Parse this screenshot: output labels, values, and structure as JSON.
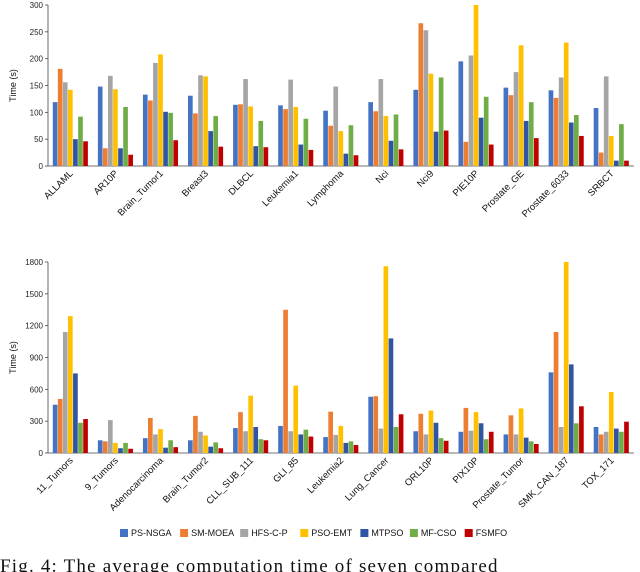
{
  "chart_data": [
    {
      "type": "bar",
      "ylabel": "Time (s)",
      "ylim": [
        0,
        300
      ],
      "yticks": [
        0,
        50,
        100,
        150,
        200,
        250,
        300
      ],
      "grid": false,
      "categories": [
        "ALLAML",
        "AR10P",
        "Brain_Tumor1",
        "Breast3",
        "DLBCL",
        "Leukemia1",
        "Lymphoma",
        "Nci",
        "Nci9",
        "PIE10P",
        "Prostate_GE",
        "Prostate_6033",
        "SRBCT"
      ],
      "series": [
        {
          "name": "PS-NSGA",
          "values": [
            119,
            148,
            133,
            131,
            114,
            113,
            103,
            119,
            142,
            195,
            146,
            141,
            108
          ]
        },
        {
          "name": "SM-MOEA",
          "values": [
            181,
            33,
            122,
            98,
            115,
            106,
            75,
            102,
            266,
            45,
            132,
            127,
            25
          ]
        },
        {
          "name": "HFS-C-P",
          "values": [
            156,
            168,
            192,
            169,
            162,
            161,
            148,
            162,
            253,
            206,
            175,
            165,
            167
          ]
        },
        {
          "name": "PSO-EMT",
          "values": [
            142,
            143,
            208,
            167,
            111,
            110,
            65,
            93,
            172,
            300,
            225,
            230,
            56
          ]
        },
        {
          "name": "MTPSO",
          "values": [
            50,
            33,
            101,
            65,
            37,
            40,
            23,
            47,
            64,
            90,
            84,
            81,
            10
          ]
        },
        {
          "name": "MF-CSO",
          "values": [
            92,
            110,
            99,
            93,
            84,
            88,
            76,
            96,
            165,
            129,
            119,
            95,
            78
          ]
        },
        {
          "name": "FSMFO",
          "values": [
            46,
            21,
            48,
            36,
            35,
            30,
            20,
            31,
            66,
            40,
            52,
            56,
            10
          ]
        }
      ]
    },
    {
      "type": "bar",
      "ylabel": "Time (s)",
      "ylim": [
        0,
        1800
      ],
      "yticks": [
        0,
        300,
        600,
        900,
        1200,
        1500,
        1800
      ],
      "grid": false,
      "categories": [
        "11_Tumors",
        "9_Tumors",
        "Adenocarcinoma",
        "Brain_Tumor2",
        "CLL_SUB_111",
        "GLI_85",
        "Leukemia2",
        "Lung_Cancer",
        "ORL10P",
        "PIX10P",
        "Prostate_Tumor",
        "SMK_CAN_187",
        "TOX_171"
      ],
      "series": [
        {
          "name": "PS-NSGA",
          "values": [
            455,
            120,
            140,
            120,
            235,
            255,
            150,
            530,
            205,
            200,
            175,
            760,
            245
          ]
        },
        {
          "name": "SM-MOEA",
          "values": [
            510,
            110,
            330,
            350,
            385,
            1350,
            390,
            535,
            370,
            425,
            355,
            1140,
            175
          ]
        },
        {
          "name": "HFS-C-P",
          "values": [
            1140,
            310,
            175,
            200,
            205,
            205,
            170,
            230,
            175,
            210,
            175,
            245,
            200
          ]
        },
        {
          "name": "PSO-EMT",
          "values": [
            1290,
            95,
            225,
            165,
            540,
            635,
            255,
            1760,
            400,
            385,
            420,
            1800,
            575
          ]
        },
        {
          "name": "MTPSO",
          "values": [
            750,
            45,
            50,
            60,
            245,
            175,
            95,
            1080,
            285,
            280,
            145,
            835,
            230
          ]
        },
        {
          "name": "MF-CSO",
          "values": [
            285,
            95,
            120,
            100,
            130,
            220,
            110,
            245,
            140,
            130,
            110,
            280,
            200
          ]
        },
        {
          "name": "FSMFO",
          "values": [
            320,
            40,
            55,
            45,
            120,
            155,
            75,
            365,
            115,
            200,
            85,
            440,
            295
          ]
        }
      ]
    }
  ],
  "legend": {
    "position": "bottom",
    "items": [
      {
        "name": "PS-NSGA",
        "color": "#4472C4"
      },
      {
        "name": "SM-MOEA",
        "color": "#ED7D31"
      },
      {
        "name": "HFS-C-P",
        "color": "#A5A5A5"
      },
      {
        "name": "PSO-EMT",
        "color": "#FFC000"
      },
      {
        "name": "MTPSO",
        "color": "#2F55A4"
      },
      {
        "name": "MF-CSO",
        "color": "#70AD47"
      },
      {
        "name": "FSMFO",
        "color": "#C00000"
      }
    ]
  },
  "caption": "Fig. 4: The average computation time of seven compared"
}
